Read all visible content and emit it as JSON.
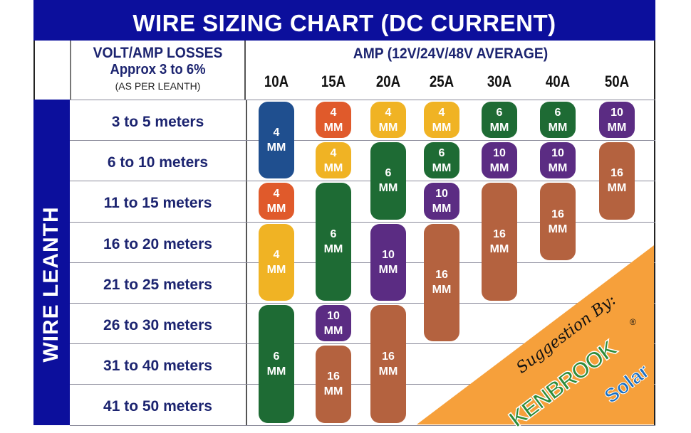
{
  "chart_data": {
    "type": "table",
    "title": "WIRE SIZING CHART (DC CURRENT)",
    "row_header": {
      "line1": "VOLT/AMP LOSSES",
      "line2": "Approx 3 to 6%",
      "line3": "(AS PER LEANTH)"
    },
    "column_header": "AMP (12V/24V/48V AVERAGE)",
    "side_label": "WIRE LEANTH",
    "columns": [
      "10A",
      "15A",
      "20A",
      "25A",
      "30A",
      "40A",
      "50A"
    ],
    "rows": [
      "3 to 5 meters",
      "6 to 10 meters",
      "11 to 15 meters",
      "16 to 20 meters",
      "21 to 25 meters",
      "26 to 30 meters",
      "31 to 40 meters",
      "41 to 50 meters"
    ],
    "unit": "MM",
    "colors": {
      "4a": "#1f4f8f",
      "4b": "#e05a2b",
      "4c": "#f0b324",
      "6": "#1e6b34",
      "10": "#5b2c83",
      "16": "#b4623f",
      "header": "#0c0f9c",
      "accent": "#f6a03b"
    },
    "cells": [
      {
        "col": 0,
        "from": 0,
        "to": 1,
        "size": "4",
        "color": "4a"
      },
      {
        "col": 0,
        "from": 2,
        "to": 2,
        "size": "4",
        "color": "4b"
      },
      {
        "col": 0,
        "from": 3,
        "to": 4,
        "size": "4",
        "color": "4c"
      },
      {
        "col": 0,
        "from": 5,
        "to": 7,
        "size": "6",
        "color": "6"
      },
      {
        "col": 1,
        "from": 0,
        "to": 0,
        "size": "4",
        "color": "4b"
      },
      {
        "col": 1,
        "from": 1,
        "to": 1,
        "size": "4",
        "color": "4c"
      },
      {
        "col": 1,
        "from": 2,
        "to": 4,
        "size": "6",
        "color": "6"
      },
      {
        "col": 1,
        "from": 5,
        "to": 5,
        "size": "10",
        "color": "10"
      },
      {
        "col": 1,
        "from": 6,
        "to": 7,
        "size": "16",
        "color": "16"
      },
      {
        "col": 2,
        "from": 0,
        "to": 0,
        "size": "4",
        "color": "4c"
      },
      {
        "col": 2,
        "from": 1,
        "to": 2,
        "size": "6",
        "color": "6"
      },
      {
        "col": 2,
        "from": 3,
        "to": 4,
        "size": "10",
        "color": "10"
      },
      {
        "col": 2,
        "from": 5,
        "to": 7,
        "size": "16",
        "color": "16"
      },
      {
        "col": 3,
        "from": 0,
        "to": 0,
        "size": "4",
        "color": "4c"
      },
      {
        "col": 3,
        "from": 1,
        "to": 1,
        "size": "6",
        "color": "6"
      },
      {
        "col": 3,
        "from": 2,
        "to": 2,
        "size": "10",
        "color": "10"
      },
      {
        "col": 3,
        "from": 3,
        "to": 5,
        "size": "16",
        "color": "16"
      },
      {
        "col": 4,
        "from": 0,
        "to": 0,
        "size": "6",
        "color": "6"
      },
      {
        "col": 4,
        "from": 1,
        "to": 1,
        "size": "10",
        "color": "10"
      },
      {
        "col": 4,
        "from": 2,
        "to": 4,
        "size": "16",
        "color": "16"
      },
      {
        "col": 5,
        "from": 0,
        "to": 0,
        "size": "6",
        "color": "6"
      },
      {
        "col": 5,
        "from": 1,
        "to": 1,
        "size": "10",
        "color": "10"
      },
      {
        "col": 5,
        "from": 2,
        "to": 3,
        "size": "16",
        "color": "16"
      },
      {
        "col": 6,
        "from": 0,
        "to": 0,
        "size": "10",
        "color": "10"
      },
      {
        "col": 6,
        "from": 1,
        "to": 2,
        "size": "16",
        "color": "16"
      }
    ]
  },
  "footer": {
    "suggestion": "Suggestion By:",
    "brand_main": "KENBROOK",
    "brand_sub": "Solar",
    "registered": "®"
  },
  "watermark": {
    "main": "KENBROOK",
    "sub": "Solar"
  }
}
